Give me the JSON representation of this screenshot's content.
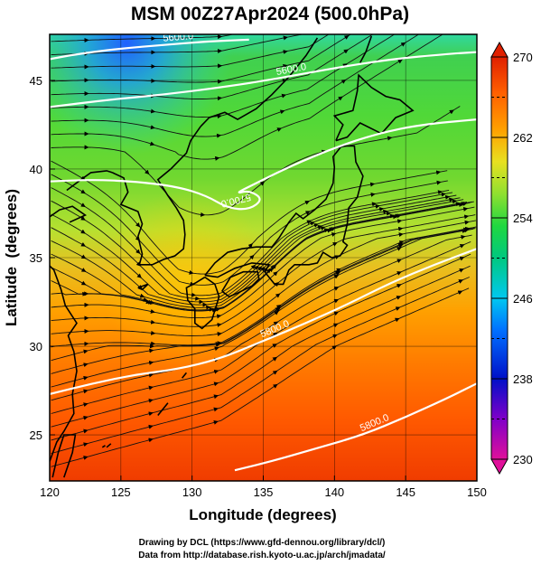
{
  "chart_data": {
    "type": "heatmap",
    "title": "MSM 00Z27Apr2024 (500.0hPa)",
    "xlabel": "Longitude (degrees)",
    "ylabel": "Latitude  (degrees)",
    "xlim": [
      120,
      150
    ],
    "ylim": [
      22.4,
      47.6
    ],
    "x_ticks": [
      120,
      125,
      130,
      135,
      140,
      145,
      150
    ],
    "y_ticks": [
      25,
      30,
      35,
      40,
      45
    ],
    "grid": true,
    "colorbar": {
      "min": 230,
      "max": 270,
      "ticks": [
        230,
        238,
        246,
        254,
        262,
        270
      ],
      "dashed_ticks": [
        234,
        242,
        250,
        258,
        266
      ],
      "colors": [
        "#e0109a",
        "#6a00cc",
        "#0010c8",
        "#0070ff",
        "#00d8e0",
        "#00c070",
        "#40e030",
        "#c8e030",
        "#ffb000",
        "#ff5000",
        "#e02000"
      ],
      "extend": "both"
    },
    "contours": [
      {
        "label": "5600.0",
        "points": [
          [
            120,
            46.2
          ],
          [
            122,
            46.5
          ],
          [
            125,
            46.8
          ],
          [
            128,
            47.0
          ],
          [
            131,
            47.2
          ],
          [
            134,
            47.3
          ]
        ]
      },
      {
        "label": "5600.0",
        "points": [
          [
            120,
            43.5
          ],
          [
            124,
            43.9
          ],
          [
            128,
            44.2
          ],
          [
            132,
            44.6
          ],
          [
            136,
            45.1
          ],
          [
            140,
            45.7
          ],
          [
            144,
            46.2
          ],
          [
            148,
            46.5
          ],
          [
            150,
            46.6
          ]
        ]
      },
      {
        "label": "5700.0",
        "points": [
          [
            120,
            39.3
          ],
          [
            123,
            39.4
          ],
          [
            126,
            39.3
          ],
          [
            129,
            39.0
          ],
          [
            131,
            38.5
          ],
          [
            132.5,
            37.8
          ],
          [
            134,
            37.7
          ],
          [
            135,
            38.3
          ],
          [
            134,
            38.8
          ],
          [
            133,
            38.6
          ],
          [
            134.5,
            39.2
          ],
          [
            137,
            40.2
          ],
          [
            140,
            41.2
          ],
          [
            143,
            42.0
          ],
          [
            146,
            42.5
          ],
          [
            150,
            42.8
          ]
        ]
      },
      {
        "label": "5800.0",
        "points": [
          [
            120,
            27.3
          ],
          [
            123,
            27.9
          ],
          [
            126,
            28.4
          ],
          [
            129,
            28.7
          ],
          [
            132,
            29.3
          ],
          [
            135,
            30.3
          ],
          [
            138,
            31.3
          ],
          [
            141,
            32.4
          ],
          [
            144,
            33.6
          ],
          [
            147,
            34.6
          ],
          [
            150,
            35.5
          ]
        ]
      },
      {
        "label": "5800.0",
        "points": [
          [
            133,
            23.0
          ],
          [
            136,
            23.6
          ],
          [
            139,
            24.3
          ],
          [
            142,
            25.0
          ],
          [
            145,
            26.0
          ],
          [
            148,
            27.1
          ],
          [
            150,
            27.9
          ]
        ]
      }
    ],
    "temperature_field_note_free": true
  },
  "credits": {
    "line1": "Drawing by DCL (https://www.gfd-dennou.org/library/dcl/)",
    "line2": "Data from http://database.rish.kyoto-u.ac.jp/arch/jmadata/"
  }
}
